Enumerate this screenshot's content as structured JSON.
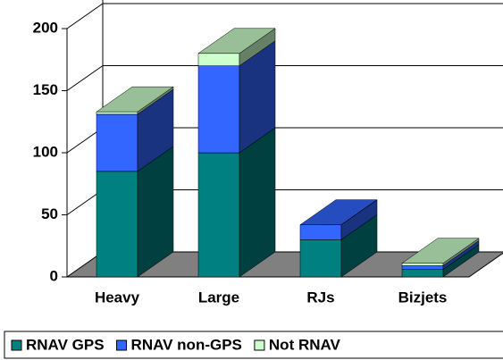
{
  "chart_data": {
    "type": "bar3d_stacked",
    "categories": [
      "Heavy",
      "Large",
      "RJs",
      "Bizjets"
    ],
    "series": [
      {
        "name": "RNAV GPS",
        "color": "#008080",
        "values": [
          85,
          100,
          30,
          6
        ]
      },
      {
        "name": "RNAV non-GPS",
        "color": "#3366ff",
        "values": [
          46,
          70,
          12,
          3
        ]
      },
      {
        "name": "Not RNAV",
        "color": "#ccffcc",
        "values": [
          2,
          10,
          0,
          2
        ]
      }
    ],
    "ylim": [
      0,
      200
    ],
    "yticks": [
      0,
      50,
      100,
      150,
      200
    ],
    "grid": true,
    "legend": "bottom"
  }
}
